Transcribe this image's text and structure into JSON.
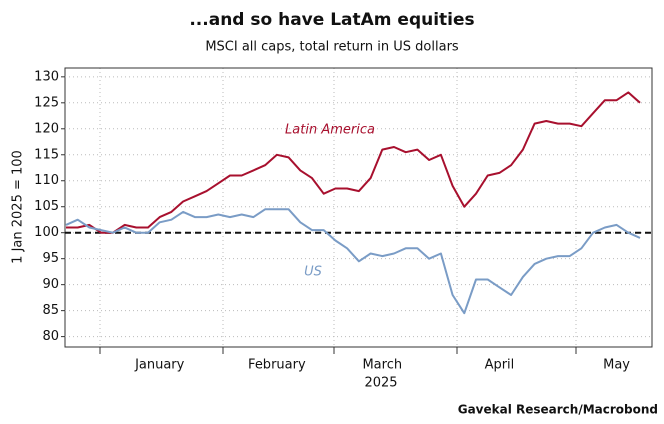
{
  "chart_data": {
    "type": "line",
    "title": "...and so have LatAm equities",
    "subtitle": "MSCI all caps, total return in US dollars",
    "y_label": "1 Jan 2025 = 100",
    "x_label": "2025",
    "source": "Gavekal Research/Macrobond",
    "categories": [
      null,
      null,
      null,
      null,
      null,
      null,
      null,
      null,
      "January",
      null,
      null,
      null,
      null,
      null,
      null,
      null,
      null,
      null,
      "February",
      null,
      null,
      null,
      null,
      null,
      null,
      null,
      null,
      "March",
      null,
      null,
      null,
      null,
      null,
      null,
      null,
      null,
      null,
      "April",
      null,
      null,
      null,
      null,
      null,
      null,
      null,
      null,
      null,
      "May",
      null,
      null
    ],
    "series": [
      {
        "name": "Latin America",
        "color": "#a8102e",
        "values": [
          101,
          101,
          101.5,
          100,
          100,
          101.5,
          101,
          101,
          103,
          104,
          106,
          107,
          108,
          109.5,
          111,
          111,
          112,
          113,
          115,
          114.5,
          112,
          110.5,
          107.5,
          108.5,
          108.5,
          108,
          110.5,
          116,
          116.5,
          115.5,
          116,
          114,
          115,
          109,
          105,
          107.5,
          111,
          111.5,
          113,
          116,
          121,
          121.5,
          121,
          121,
          120.5,
          123,
          125.5,
          125.5,
          127,
          125
        ]
      },
      {
        "name": "US",
        "color": "#7a9cc6",
        "values": [
          101.5,
          102.5,
          101,
          100.5,
          100,
          101,
          100,
          100,
          102,
          102.5,
          104,
          103,
          103,
          103.5,
          103,
          103.5,
          103,
          104.5,
          104.5,
          104.5,
          102,
          100.5,
          100.5,
          98.5,
          97,
          94.5,
          96,
          95.5,
          96,
          97,
          97,
          95,
          96,
          88,
          84.5,
          91,
          91,
          89.5,
          88,
          91.5,
          94,
          95,
          95.5,
          95.5,
          97,
          100,
          101,
          101.5,
          100,
          99
        ]
      }
    ],
    "reference_line": 100,
    "ylim": [
      78,
      131.7
    ],
    "yticks": [
      80,
      85,
      90,
      95,
      100,
      105,
      110,
      115,
      120,
      125,
      130
    ],
    "grid": true
  }
}
